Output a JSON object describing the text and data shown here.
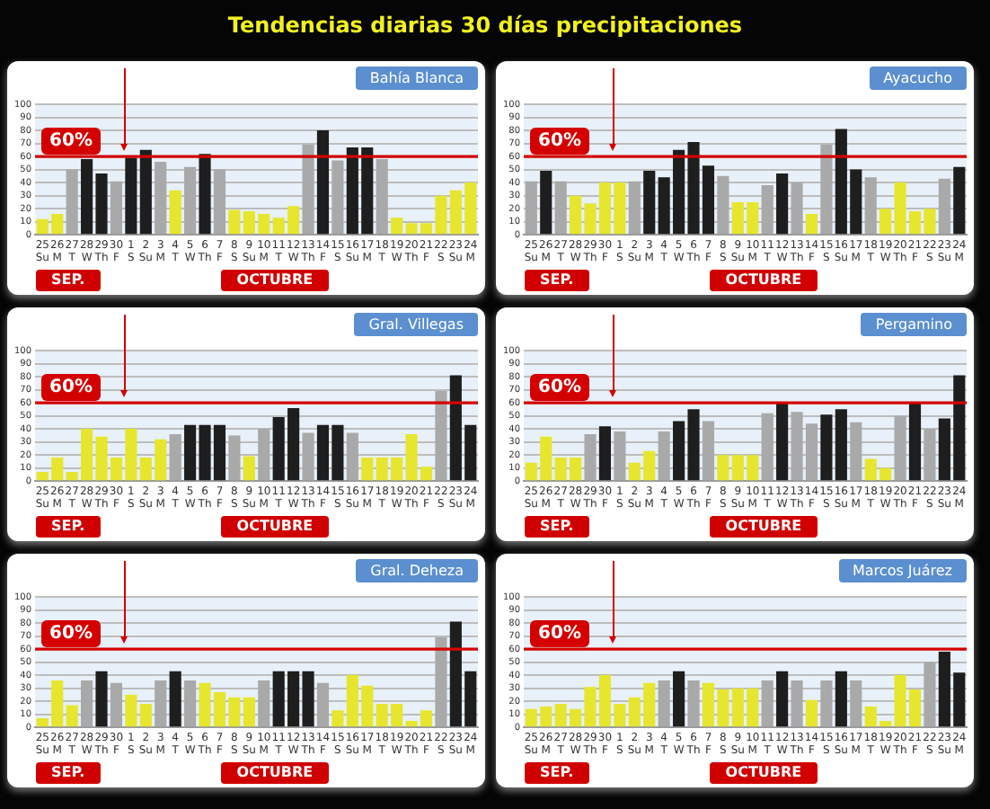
{
  "chart_data": [
    {
      "type": "bar",
      "title": "Tendencias diarias 30 días precipitaciones",
      "subtitle": "Bahía Blanca",
      "categories": [
        "25\nSu",
        "26\nM",
        "27\nT",
        "28\nW",
        "29\nTh",
        "30\nF",
        "1\nS",
        "2\nSu",
        "3\nM",
        "4\nT",
        "5\nW",
        "6\nTh",
        "7\nF",
        "8\nS",
        "9\nSu",
        "10\nM",
        "11\nT",
        "12\nW",
        "13\nTh",
        "14\nF",
        "15\nS",
        "16\nSu",
        "17\nM",
        "18\nT",
        "19\nW",
        "20\nTh",
        "21\nF",
        "22\nS",
        "23\nSu",
        "24\nM"
      ],
      "values": [
        12,
        16,
        50,
        58,
        47,
        41,
        59,
        65,
        56,
        34,
        52,
        62,
        50,
        19,
        18,
        16,
        13,
        22,
        69,
        80,
        57,
        67,
        67,
        58,
        13,
        9,
        9,
        30,
        34,
        40
      ],
      "colors": [
        "#e6e62e",
        "#e6e62e",
        "#a9a9a9",
        "#1e1e1e",
        "#1e1e1e",
        "#a9a9a9",
        "#1e1e1e",
        "#1e1e1e",
        "#a9a9a9",
        "#e6e62e",
        "#a9a9a9",
        "#1e1e1e",
        "#a9a9a9",
        "#e6e62e",
        "#e6e62e",
        "#e6e62e",
        "#e6e62e",
        "#e6e62e",
        "#a9a9a9",
        "#1e1e1e",
        "#a9a9a9",
        "#1e1e1e",
        "#1e1e1e",
        "#a9a9a9",
        "#e6e62e",
        "#e6e62e",
        "#e6e62e",
        "#e6e62e",
        "#e6e62e",
        "#e6e62e"
      ],
      "ylim": [
        0,
        100
      ],
      "yticks": [
        0,
        10,
        20,
        30,
        40,
        50,
        60,
        70,
        80,
        90,
        100
      ],
      "grid": "y",
      "ref_lines": [
        {
          "axis": "y",
          "value": 60,
          "label": "60%",
          "color": "#d40000"
        }
      ],
      "annotations": [
        "SEP.",
        "OCTUBRE"
      ]
    },
    {
      "type": "bar",
      "subtitle": "Ayacucho",
      "categories": [
        "25\nSu",
        "26\nM",
        "27\nT",
        "28\nW",
        "29\nTh",
        "30\nF",
        "1\nS",
        "2\nSu",
        "3\nM",
        "4\nT",
        "5\nW",
        "6\nTh",
        "7\nF",
        "8\nS",
        "9\nSu",
        "10\nM",
        "11\nT",
        "12\nW",
        "13\nTh",
        "14\nF",
        "15\nS",
        "16\nSu",
        "17\nM",
        "18\nT",
        "19\nW",
        "20\nTh",
        "21\nF",
        "22\nS",
        "23\nSu",
        "24\nM"
      ],
      "values": [
        41,
        49,
        41,
        30,
        24,
        40,
        40,
        41,
        49,
        44,
        65,
        71,
        53,
        45,
        25,
        25,
        38,
        47,
        40,
        16,
        69,
        81,
        50,
        44,
        20,
        40,
        18,
        20,
        43,
        52
      ],
      "colors": [
        "#a9a9a9",
        "#1e1e1e",
        "#a9a9a9",
        "#e6e62e",
        "#e6e62e",
        "#e6e62e",
        "#e6e62e",
        "#a9a9a9",
        "#1e1e1e",
        "#1e1e1e",
        "#1e1e1e",
        "#1e1e1e",
        "#1e1e1e",
        "#a9a9a9",
        "#e6e62e",
        "#e6e62e",
        "#a9a9a9",
        "#1e1e1e",
        "#a9a9a9",
        "#e6e62e",
        "#a9a9a9",
        "#1e1e1e",
        "#1e1e1e",
        "#a9a9a9",
        "#e6e62e",
        "#e6e62e",
        "#e6e62e",
        "#e6e62e",
        "#a9a9a9",
        "#1e1e1e"
      ],
      "ylim": [
        0,
        100
      ],
      "yticks": [
        0,
        10,
        20,
        30,
        40,
        50,
        60,
        70,
        80,
        90,
        100
      ],
      "grid": "y",
      "ref_lines": [
        {
          "axis": "y",
          "value": 60,
          "label": "60%",
          "color": "#d40000"
        }
      ],
      "annotations": [
        "SEP.",
        "OCTUBRE"
      ]
    },
    {
      "type": "bar",
      "subtitle": "Gral. Villegas",
      "categories": [
        "25\nSu",
        "26\nM",
        "27\nT",
        "28\nW",
        "29\nTh",
        "30\nF",
        "1\nS",
        "2\nSu",
        "3\nM",
        "4\nT",
        "5\nW",
        "6\nTh",
        "7\nF",
        "8\nS",
        "9\nSu",
        "10\nM",
        "11\nT",
        "12\nW",
        "13\nTh",
        "14\nF",
        "15\nS",
        "16\nSu",
        "17\nM",
        "18\nT",
        "19\nW",
        "20\nTh",
        "21\nF",
        "22\nS",
        "23\nSu",
        "24\nM"
      ],
      "values": [
        7,
        18,
        7,
        40,
        34,
        18,
        40,
        18,
        32,
        36,
        43,
        43,
        43,
        35,
        19,
        40,
        49,
        56,
        37,
        43,
        43,
        37,
        18,
        18,
        18,
        36,
        11,
        69,
        81,
        43
      ],
      "colors": [
        "#e6e62e",
        "#e6e62e",
        "#e6e62e",
        "#e6e62e",
        "#e6e62e",
        "#e6e62e",
        "#e6e62e",
        "#e6e62e",
        "#e6e62e",
        "#a9a9a9",
        "#1e1e1e",
        "#1e1e1e",
        "#1e1e1e",
        "#a9a9a9",
        "#e6e62e",
        "#a9a9a9",
        "#1e1e1e",
        "#1e1e1e",
        "#a9a9a9",
        "#1e1e1e",
        "#1e1e1e",
        "#a9a9a9",
        "#e6e62e",
        "#e6e62e",
        "#e6e62e",
        "#e6e62e",
        "#e6e62e",
        "#a9a9a9",
        "#1e1e1e",
        "#1e1e1e"
      ],
      "ylim": [
        0,
        100
      ],
      "yticks": [
        0,
        10,
        20,
        30,
        40,
        50,
        60,
        70,
        80,
        90,
        100
      ],
      "grid": "y",
      "ref_lines": [
        {
          "axis": "y",
          "value": 60,
          "label": "60%",
          "color": "#d40000"
        }
      ],
      "annotations": [
        "SEP.",
        "OCTUBRE"
      ]
    },
    {
      "type": "bar",
      "subtitle": "Pergamino",
      "categories": [
        "25\nSu",
        "26\nM",
        "27\nT",
        "28\nW",
        "29\nTh",
        "30\nF",
        "1\nS",
        "2\nSu",
        "3\nM",
        "4\nT",
        "5\nW",
        "6\nTh",
        "7\nF",
        "8\nS",
        "9\nSu",
        "10\nM",
        "11\nT",
        "12\nW",
        "13\nTh",
        "14\nF",
        "15\nS",
        "16\nSu",
        "17\nM",
        "18\nT",
        "19\nW",
        "20\nTh",
        "21\nF",
        "22\nS",
        "23\nSu",
        "24\nM"
      ],
      "values": [
        14,
        34,
        18,
        18,
        36,
        42,
        38,
        14,
        23,
        38,
        46,
        55,
        46,
        20,
        20,
        20,
        52,
        60,
        53,
        44,
        51,
        55,
        45,
        17,
        10,
        50,
        60,
        40,
        48,
        81
      ],
      "colors": [
        "#e6e62e",
        "#e6e62e",
        "#e6e62e",
        "#e6e62e",
        "#a9a9a9",
        "#1e1e1e",
        "#a9a9a9",
        "#e6e62e",
        "#e6e62e",
        "#a9a9a9",
        "#1e1e1e",
        "#1e1e1e",
        "#a9a9a9",
        "#e6e62e",
        "#e6e62e",
        "#e6e62e",
        "#a9a9a9",
        "#1e1e1e",
        "#a9a9a9",
        "#a9a9a9",
        "#1e1e1e",
        "#1e1e1e",
        "#a9a9a9",
        "#e6e62e",
        "#e6e62e",
        "#a9a9a9",
        "#1e1e1e",
        "#a9a9a9",
        "#1e1e1e",
        "#1e1e1e"
      ],
      "ylim": [
        0,
        100
      ],
      "yticks": [
        0,
        10,
        20,
        30,
        40,
        50,
        60,
        70,
        80,
        90,
        100
      ],
      "grid": "y",
      "ref_lines": [
        {
          "axis": "y",
          "value": 60,
          "label": "60%",
          "color": "#d40000"
        }
      ],
      "annotations": [
        "SEP.",
        "OCTUBRE"
      ]
    },
    {
      "type": "bar",
      "subtitle": "Gral. Deheza",
      "categories": [
        "25\nSu",
        "26\nM",
        "27\nT",
        "28\nW",
        "29\nTh",
        "30\nF",
        "1\nS",
        "2\nSu",
        "3\nM",
        "4\nT",
        "5\nW",
        "6\nTh",
        "7\nF",
        "8\nS",
        "9\nSu",
        "10\nM",
        "11\nT",
        "12\nW",
        "13\nTh",
        "14\nF",
        "15\nS",
        "16\nSu",
        "17\nM",
        "18\nT",
        "19\nW",
        "20\nTh",
        "21\nF",
        "22\nS",
        "23\nSu",
        "24\nM"
      ],
      "values": [
        7,
        36,
        17,
        36,
        43,
        34,
        25,
        18,
        36,
        43,
        36,
        34,
        27,
        23,
        23,
        36,
        43,
        43,
        43,
        34,
        13,
        40,
        32,
        18,
        18,
        5,
        13,
        69,
        81,
        43
      ],
      "colors": [
        "#e6e62e",
        "#e6e62e",
        "#e6e62e",
        "#a9a9a9",
        "#1e1e1e",
        "#a9a9a9",
        "#e6e62e",
        "#e6e62e",
        "#a9a9a9",
        "#1e1e1e",
        "#a9a9a9",
        "#e6e62e",
        "#e6e62e",
        "#e6e62e",
        "#e6e62e",
        "#a9a9a9",
        "#1e1e1e",
        "#1e1e1e",
        "#1e1e1e",
        "#a9a9a9",
        "#e6e62e",
        "#e6e62e",
        "#e6e62e",
        "#e6e62e",
        "#e6e62e",
        "#e6e62e",
        "#e6e62e",
        "#a9a9a9",
        "#1e1e1e",
        "#1e1e1e"
      ],
      "ylim": [
        0,
        100
      ],
      "yticks": [
        0,
        10,
        20,
        30,
        40,
        50,
        60,
        70,
        80,
        90,
        100
      ],
      "grid": "y",
      "ref_lines": [
        {
          "axis": "y",
          "value": 60,
          "label": "60%",
          "color": "#d40000"
        }
      ],
      "annotations": [
        "SEP.",
        "OCTUBRE"
      ]
    },
    {
      "type": "bar",
      "subtitle": "Marcos Juárez",
      "categories": [
        "25\nSu",
        "26\nM",
        "27\nT",
        "28\nW",
        "29\nTh",
        "30\nF",
        "1\nS",
        "2\nSu",
        "3\nM",
        "4\nT",
        "5\nW",
        "6\nTh",
        "7\nF",
        "8\nS",
        "9\nSu",
        "10\nM",
        "11\nT",
        "12\nW",
        "13\nTh",
        "14\nF",
        "15\nS",
        "16\nSu",
        "17\nM",
        "18\nT",
        "19\nW",
        "20\nTh",
        "21\nF",
        "22\nS",
        "23\nSu",
        "24\nM"
      ],
      "values": [
        14,
        16,
        18,
        14,
        31,
        40,
        18,
        23,
        34,
        36,
        43,
        36,
        34,
        29,
        30,
        30,
        36,
        43,
        36,
        21,
        36,
        43,
        36,
        16,
        5,
        40,
        29,
        50,
        58,
        42
      ],
      "colors": [
        "#e6e62e",
        "#e6e62e",
        "#e6e62e",
        "#e6e62e",
        "#e6e62e",
        "#e6e62e",
        "#e6e62e",
        "#e6e62e",
        "#e6e62e",
        "#a9a9a9",
        "#1e1e1e",
        "#a9a9a9",
        "#e6e62e",
        "#e6e62e",
        "#e6e62e",
        "#e6e62e",
        "#a9a9a9",
        "#1e1e1e",
        "#a9a9a9",
        "#e6e62e",
        "#a9a9a9",
        "#1e1e1e",
        "#a9a9a9",
        "#e6e62e",
        "#e6e62e",
        "#e6e62e",
        "#e6e62e",
        "#a9a9a9",
        "#1e1e1e",
        "#1e1e1e"
      ],
      "ylim": [
        0,
        100
      ],
      "yticks": [
        0,
        10,
        20,
        30,
        40,
        50,
        60,
        70,
        80,
        90,
        100
      ],
      "grid": "y",
      "ref_lines": [
        {
          "axis": "y",
          "value": 60,
          "label": "60%",
          "color": "#d40000"
        }
      ],
      "annotations": [
        "SEP.",
        "OCTUBRE"
      ]
    }
  ]
}
